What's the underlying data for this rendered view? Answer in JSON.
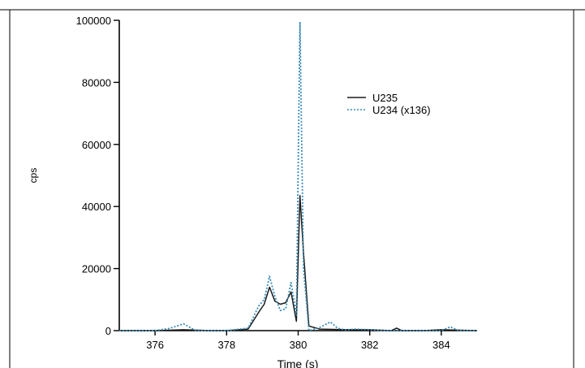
{
  "chart_data": {
    "type": "line",
    "title": "",
    "xlabel": "Time (s)",
    "ylabel": "cps",
    "xlim": [
      375,
      385
    ],
    "ylim": [
      0,
      100000
    ],
    "xticks": [
      376,
      378,
      380,
      382,
      384
    ],
    "yticks": [
      0,
      20000,
      40000,
      60000,
      80000,
      100000
    ],
    "legend_position": "top-right",
    "series": [
      {
        "name": "U235",
        "color": "#1a1a1a",
        "dash": "solid",
        "x": [
          375.0,
          376.0,
          376.8,
          377.5,
          378.0,
          378.6,
          378.9,
          379.05,
          379.2,
          379.35,
          379.5,
          379.65,
          379.8,
          379.95,
          380.05,
          380.15,
          380.3,
          380.6,
          381.0,
          381.5,
          382.0,
          382.6,
          382.75,
          382.9,
          383.5,
          384.0,
          385.0
        ],
        "y": [
          0,
          0,
          300,
          0,
          0,
          500,
          6000,
          8500,
          14000,
          9500,
          8500,
          9000,
          12500,
          3000,
          43500,
          25000,
          1500,
          500,
          400,
          300,
          300,
          0,
          800,
          0,
          0,
          300,
          0
        ]
      },
      {
        "name": "U234 (x136)",
        "color": "#3a8cb6",
        "dash": "dotted",
        "x": [
          375.0,
          376.0,
          376.4,
          376.8,
          377.1,
          377.5,
          378.0,
          378.6,
          378.9,
          379.05,
          379.2,
          379.35,
          379.5,
          379.65,
          379.8,
          379.95,
          380.05,
          380.15,
          380.3,
          380.6,
          380.9,
          381.1,
          381.3,
          381.6,
          382.0,
          382.5,
          383.0,
          384.0,
          384.25,
          384.5,
          385.0
        ],
        "y": [
          0,
          0,
          700,
          2200,
          200,
          0,
          0,
          800,
          8000,
          10000,
          17500,
          11000,
          6500,
          7000,
          15500,
          5000,
          99500,
          20000,
          0,
          1000,
          2800,
          800,
          200,
          500,
          300,
          0,
          0,
          0,
          1200,
          0,
          0
        ]
      }
    ]
  }
}
